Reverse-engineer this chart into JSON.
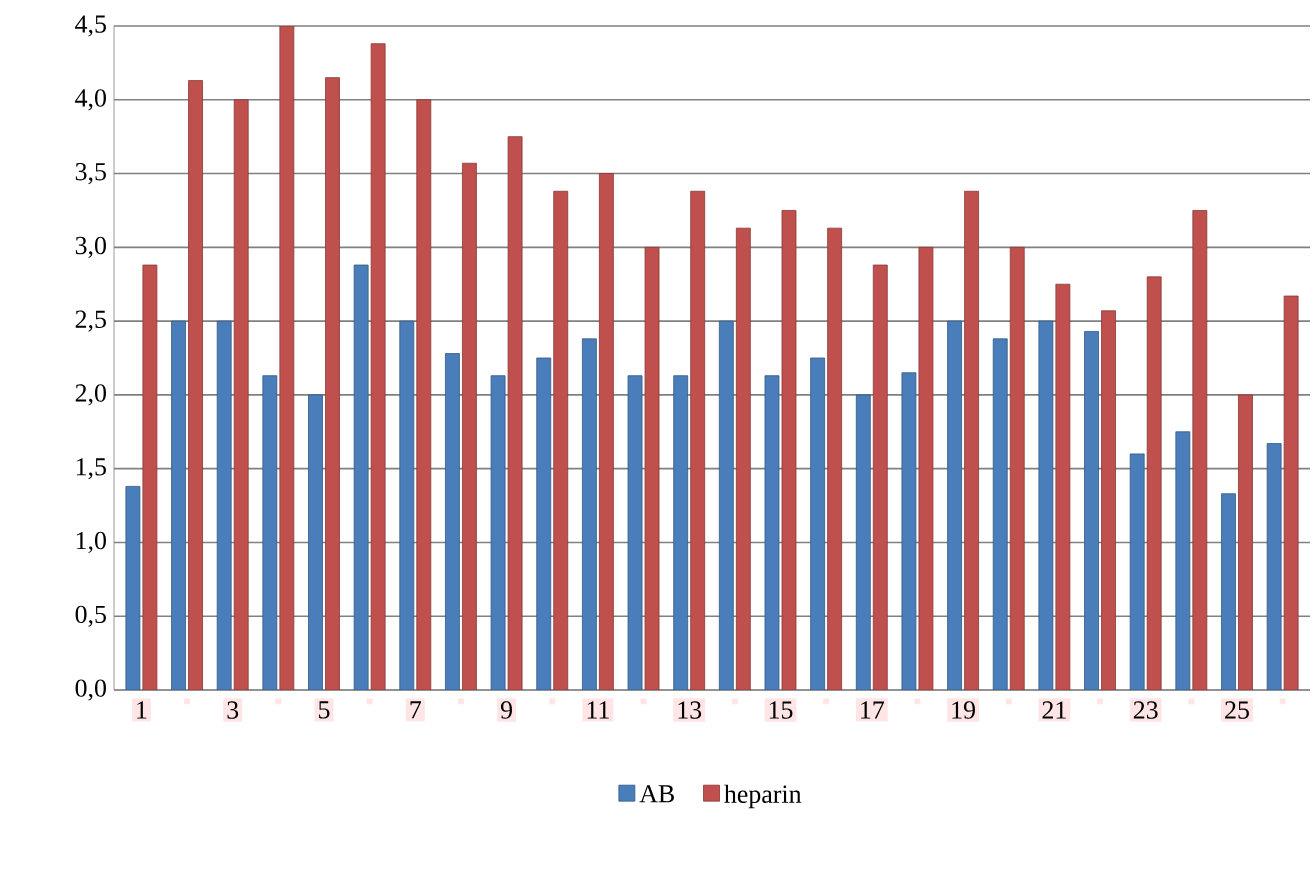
{
  "chart_data": {
    "type": "bar",
    "categories": [
      "1",
      null,
      "3",
      null,
      "5",
      null,
      "7",
      null,
      "9",
      null,
      "11",
      null,
      "13",
      null,
      "15",
      null,
      "17",
      null,
      "19",
      null,
      "21",
      null,
      "23",
      null,
      "25",
      null
    ],
    "series": [
      {
        "name": "AB",
        "color": "#4a7ebb",
        "values": [
          1.38,
          2.5,
          2.5,
          2.13,
          2.0,
          2.88,
          2.5,
          2.28,
          2.13,
          2.25,
          2.38,
          2.13,
          2.13,
          2.5,
          2.13,
          2.25,
          2.0,
          2.15,
          2.5,
          2.38,
          2.5,
          2.43,
          1.6,
          1.75,
          1.33,
          1.67
        ]
      },
      {
        "name": "heparin",
        "color": "#c0504d",
        "values": [
          2.88,
          4.13,
          4.0,
          4.5,
          4.15,
          4.38,
          4.0,
          3.57,
          3.75,
          3.38,
          3.5,
          3.0,
          3.38,
          3.13,
          3.25,
          3.13,
          2.88,
          3.0,
          3.38,
          3.0,
          2.75,
          2.57,
          2.8,
          3.25,
          2.0,
          2.67
        ]
      }
    ],
    "ylim": [
      0,
      4.5
    ],
    "yticks": [
      {
        "value": 0,
        "label": "0,0"
      },
      {
        "value": 0.5,
        "label": "0,5"
      },
      {
        "value": 1,
        "label": "1,0"
      },
      {
        "value": 1.5,
        "label": "1,5"
      },
      {
        "value": 2,
        "label": "2,0"
      },
      {
        "value": 2.5,
        "label": "2,5"
      },
      {
        "value": 3,
        "label": "3,0"
      },
      {
        "value": 3.5,
        "label": "3,5"
      },
      {
        "value": 4,
        "label": "4,0"
      },
      {
        "value": 4.5,
        "label": "4,5"
      }
    ],
    "grid": "y",
    "legend": "bottom"
  }
}
